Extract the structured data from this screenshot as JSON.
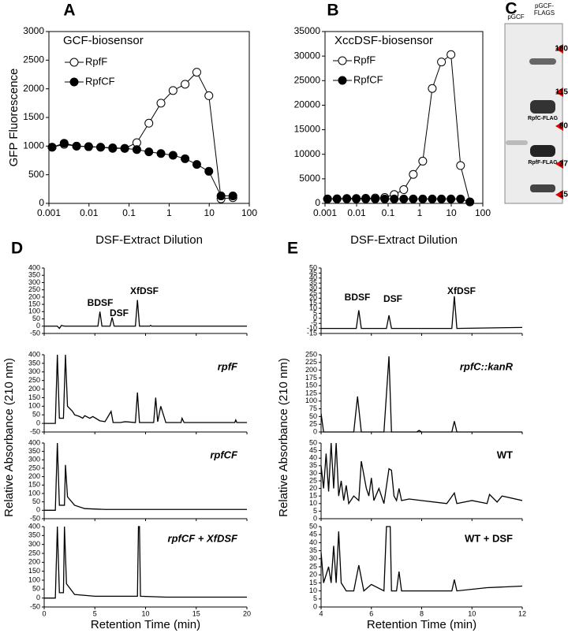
{
  "chart_data": [
    {
      "type": "line",
      "panel": "A",
      "annotation": "GCF-biosensor",
      "xlabel": "DSF-Extract Dilution",
      "ylabel": "GFP Fluorescence",
      "xscale": "log",
      "xlim": [
        0.001,
        100
      ],
      "xticks": [
        0.001,
        0.01,
        0.1,
        1,
        10,
        100
      ],
      "ylim": [
        0,
        3000
      ],
      "yticks": [
        0,
        500,
        1000,
        1500,
        2000,
        2500,
        3000
      ],
      "x": [
        0.0012,
        0.0024,
        0.0049,
        0.0098,
        0.0195,
        0.039,
        0.078,
        0.156,
        0.3125,
        0.625,
        1.25,
        2.5,
        4.9,
        9.8,
        19.7,
        39
      ],
      "series": [
        {
          "name": "RpfF",
          "marker": "open",
          "color": "#000000",
          "values": [
            980,
            1030,
            1000,
            990,
            980,
            970,
            960,
            1060,
            1400,
            1750,
            1970,
            2080,
            2290,
            1880,
            80,
            100
          ]
        },
        {
          "name": "RpfCF",
          "marker": "filled",
          "color": "#000000",
          "values": [
            980,
            1050,
            1000,
            990,
            980,
            960,
            960,
            940,
            900,
            870,
            840,
            780,
            680,
            560,
            130,
            130
          ]
        }
      ]
    },
    {
      "type": "line",
      "panel": "B",
      "annotation": "XccDSF-biosensor",
      "xlabel": "DSF-Extract Dilution",
      "xscale": "log",
      "xlim": [
        0.001,
        100
      ],
      "xticks": [
        0.001,
        0.01,
        0.1,
        1,
        10,
        100
      ],
      "ylim": [
        0,
        35000
      ],
      "yticks": [
        0,
        5000,
        10000,
        15000,
        20000,
        25000,
        30000,
        35000
      ],
      "x": [
        0.0012,
        0.0024,
        0.0049,
        0.0098,
        0.0195,
        0.039,
        0.078,
        0.156,
        0.3125,
        0.625,
        1.25,
        2.5,
        4.9,
        9.8,
        19.7,
        39
      ],
      "series": [
        {
          "name": "RpfF",
          "marker": "open",
          "color": "#000000",
          "values": [
            900,
            950,
            1000,
            1000,
            1050,
            1100,
            1200,
            1800,
            2800,
            5900,
            8600,
            23400,
            28800,
            30300,
            7700,
            300
          ]
        },
        {
          "name": "RpfCF",
          "marker": "filled",
          "color": "#000000",
          "values": [
            900,
            900,
            900,
            900,
            900,
            900,
            900,
            900,
            900,
            900,
            900,
            900,
            900,
            900,
            900,
            300
          ]
        }
      ]
    },
    {
      "type": "chromatogram",
      "panel": "D",
      "xlabel": "Retention Time (min)",
      "ylabel": "Relative Absorbance (210 nm)",
      "xlim": [
        0,
        20
      ],
      "xticks": [
        0,
        5,
        10,
        15,
        20
      ],
      "subplots": [
        {
          "peaks": [
            "BDSF",
            "DSF",
            "XfDSF"
          ],
          "ylim": [
            -50,
            400
          ],
          "yticks": [
            -50,
            0,
            50,
            100,
            150,
            200,
            250,
            300,
            350,
            400
          ],
          "x": [
            0,
            1.3,
            1.5,
            1.7,
            2,
            5.3,
            5.5,
            5.7,
            6.5,
            6.7,
            6.9,
            9.0,
            9.2,
            9.4,
            10.4,
            10.5,
            10.6,
            20
          ],
          "values": [
            0,
            0,
            -15,
            5,
            0,
            0,
            100,
            0,
            0,
            60,
            0,
            0,
            180,
            0,
            0,
            5,
            0,
            0
          ]
        },
        {
          "label": "rpfF",
          "ylim": [
            -50,
            400
          ],
          "yticks": [
            -50,
            0,
            50,
            100,
            150,
            200,
            250,
            300,
            350,
            400
          ],
          "x": [
            0,
            1.1,
            1.3,
            1.5,
            1.9,
            2.1,
            2.3,
            2.8,
            3,
            3.5,
            3.8,
            4,
            4.5,
            4.8,
            5.5,
            6,
            6.6,
            6.8,
            7.5,
            8,
            9,
            9.2,
            9.4,
            10,
            10.8,
            11,
            11.2,
            11.5,
            12,
            13.5,
            13.6,
            13.8,
            15,
            17,
            18.8,
            18.9,
            19,
            20
          ],
          "values": [
            0,
            0,
            400,
            30,
            30,
            400,
            100,
            70,
            50,
            40,
            30,
            45,
            30,
            40,
            15,
            10,
            70,
            5,
            5,
            10,
            5,
            180,
            5,
            5,
            5,
            150,
            10,
            100,
            5,
            5,
            30,
            5,
            5,
            5,
            5,
            20,
            5,
            5
          ]
        },
        {
          "label": "rpfCF",
          "ylim": [
            -50,
            400
          ],
          "yticks": [
            -50,
            0,
            50,
            100,
            150,
            200,
            250,
            300,
            350,
            400
          ],
          "x": [
            0,
            1.1,
            1.3,
            1.5,
            2,
            2.1,
            2.3,
            3,
            4,
            6,
            10,
            20
          ],
          "values": [
            0,
            0,
            400,
            30,
            30,
            270,
            80,
            30,
            10,
            5,
            5,
            5
          ]
        },
        {
          "label": "rpfCF + XfDSF",
          "ylim": [
            -50,
            400
          ],
          "yticks": [
            -50,
            0,
            50,
            100,
            150,
            200,
            250,
            300,
            350,
            400
          ],
          "x": [
            0,
            1.1,
            1.3,
            1.5,
            1.9,
            2.0,
            2.2,
            3,
            5,
            9.2,
            9.3,
            9.4,
            9.5,
            12,
            20
          ],
          "values": [
            0,
            0,
            400,
            30,
            30,
            400,
            80,
            20,
            10,
            10,
            400,
            400,
            10,
            5,
            5
          ]
        }
      ]
    },
    {
      "type": "chromatogram",
      "panel": "E",
      "xlabel": "Retention Time (min)",
      "ylabel": "Relative Absorbance (210 nm)",
      "xlim": [
        4,
        12
      ],
      "xticks": [
        4,
        6,
        8,
        10,
        12
      ],
      "subplots": [
        {
          "peaks": [
            "BDSF",
            "DSF",
            "XfDSF"
          ],
          "ylim": [
            -15,
            50
          ],
          "yticks": [
            -15,
            -10,
            -5,
            0,
            5,
            10,
            15,
            20,
            25,
            30,
            35,
            40,
            45,
            50
          ],
          "x": [
            4,
            5.4,
            5.5,
            5.6,
            6.6,
            6.7,
            6.8,
            9.2,
            9.3,
            9.4,
            12
          ],
          "values": [
            -10,
            -10,
            8,
            -10,
            -10,
            3,
            -10,
            -10,
            22,
            -10,
            -9
          ]
        },
        {
          "label": "rpfC::kanR",
          "ylim": [
            0,
            250
          ],
          "yticks": [
            0,
            25,
            50,
            75,
            100,
            125,
            150,
            175,
            200,
            225,
            250
          ],
          "x": [
            4,
            4.1,
            4.3,
            5.3,
            5.45,
            5.6,
            6.5,
            6.7,
            6.8,
            7.8,
            7.9,
            8.0,
            9.2,
            9.3,
            9.4,
            12
          ],
          "values": [
            60,
            0,
            0,
            0,
            115,
            0,
            0,
            245,
            0,
            0,
            5,
            0,
            0,
            35,
            0,
            0
          ]
        },
        {
          "label": "WT",
          "ylim": [
            0,
            50
          ],
          "yticks": [
            0,
            5,
            10,
            15,
            20,
            25,
            30,
            35,
            40,
            45,
            50
          ],
          "x": [
            4,
            4.1,
            4.2,
            4.3,
            4.4,
            4.5,
            4.6,
            4.7,
            4.8,
            4.9,
            5.0,
            5.1,
            5.3,
            5.5,
            5.6,
            5.8,
            5.9,
            6.0,
            6.1,
            6.3,
            6.5,
            6.7,
            6.8,
            6.9,
            7.0,
            7.1,
            7.2,
            7.5,
            8,
            9,
            9.3,
            9.4,
            10,
            10.6,
            10.7,
            11,
            11.2,
            12
          ],
          "values": [
            35,
            20,
            43,
            18,
            50,
            20,
            50,
            15,
            25,
            12,
            22,
            10,
            15,
            12,
            38,
            20,
            15,
            27,
            12,
            20,
            10,
            33,
            32,
            15,
            12,
            20,
            12,
            13,
            12,
            10,
            17,
            10,
            12,
            10,
            16,
            11,
            15,
            12
          ]
        },
        {
          "label": "WT + DSF",
          "ylim": [
            0,
            50
          ],
          "yticks": [
            0,
            5,
            10,
            15,
            20,
            25,
            30,
            35,
            40,
            45,
            50
          ],
          "x": [
            4,
            4.1,
            4.3,
            4.4,
            4.5,
            4.6,
            4.7,
            4.8,
            5.0,
            5.3,
            5.5,
            5.7,
            6.0,
            6.5,
            6.6,
            6.65,
            6.75,
            6.8,
            7.0,
            7.1,
            7.2,
            8,
            9.2,
            9.3,
            9.4,
            10.6,
            12
          ],
          "values": [
            34,
            15,
            25,
            15,
            38,
            15,
            47,
            15,
            10,
            10,
            26,
            10,
            14,
            10,
            50,
            50,
            50,
            10,
            10,
            22,
            10,
            10,
            10,
            17,
            10,
            12,
            13
          ]
        }
      ]
    }
  ],
  "blot": {
    "panel": "C",
    "lanes": [
      "pGCF",
      "pGCF-FLAGS"
    ],
    "bands": [
      "RpfC-FLAG",
      "RpfF-FLAG"
    ],
    "markers": [
      180,
      115,
      80,
      37,
      15
    ]
  }
}
